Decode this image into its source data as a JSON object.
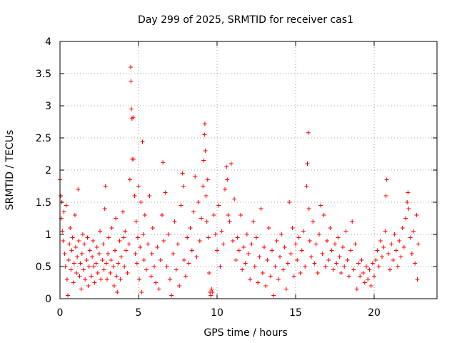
{
  "chart_data": {
    "type": "scatter",
    "title": "Day 299 of 2025, SRMTID for receiver cas1",
    "xlabel": "GPS time / hours",
    "ylabel": "SRMTID / TECUs",
    "xlim": [
      0,
      24
    ],
    "ylim": [
      0,
      4
    ],
    "xticks": [
      0,
      5,
      10,
      15,
      20
    ],
    "xtick_labels": [
      "0",
      "5",
      "10",
      "15",
      "20"
    ],
    "yticks": [
      0,
      0.5,
      1,
      1.5,
      2,
      2.5,
      3,
      3.5,
      4
    ],
    "ytick_labels": [
      "0",
      "0.5",
      "1",
      "1.5",
      "2",
      "2.5",
      "3",
      "3.5",
      "4"
    ],
    "grid": true,
    "marker": "+",
    "color": "#ff0000",
    "series": [
      {
        "name": "SRMTID",
        "points": [
          [
            0.0,
            1.85
          ],
          [
            0.05,
            1.6
          ],
          [
            0.08,
            1.25
          ],
          [
            0.12,
            1.5
          ],
          [
            0.15,
            1.05
          ],
          [
            0.2,
            0.9
          ],
          [
            0.25,
            1.35
          ],
          [
            0.3,
            0.7
          ],
          [
            0.35,
            0.5
          ],
          [
            0.4,
            1.45
          ],
          [
            0.45,
            0.3
          ],
          [
            0.5,
            0.05
          ],
          [
            0.55,
            0.6
          ],
          [
            0.6,
            0.85
          ],
          [
            0.65,
            1.1
          ],
          [
            0.7,
            0.45
          ],
          [
            0.75,
            0.75
          ],
          [
            0.8,
            0.95
          ],
          [
            0.85,
            0.25
          ],
          [
            0.9,
            0.55
          ],
          [
            0.95,
            1.3
          ],
          [
            1.0,
            0.8
          ],
          [
            1.05,
            0.4
          ],
          [
            1.1,
            0.65
          ],
          [
            1.15,
            1.7
          ],
          [
            1.2,
            0.9
          ],
          [
            1.25,
            0.35
          ],
          [
            1.3,
            0.55
          ],
          [
            1.35,
            0.15
          ],
          [
            1.4,
            0.7
          ],
          [
            1.45,
            1.0
          ],
          [
            1.5,
            0.45
          ],
          [
            1.55,
            0.85
          ],
          [
            1.6,
            0.3
          ],
          [
            1.7,
            0.6
          ],
          [
            1.75,
            0.95
          ],
          [
            1.8,
            0.2
          ],
          [
            1.85,
            0.5
          ],
          [
            1.9,
            0.75
          ],
          [
            2.0,
            0.35
          ],
          [
            2.05,
            0.65
          ],
          [
            2.1,
            0.9
          ],
          [
            2.15,
            0.5
          ],
          [
            2.2,
            0.25
          ],
          [
            2.3,
            0.55
          ],
          [
            2.35,
            0.8
          ],
          [
            2.4,
            0.4
          ],
          [
            2.5,
            0.7
          ],
          [
            2.55,
            1.05
          ],
          [
            2.6,
            0.3
          ],
          [
            2.7,
            0.6
          ],
          [
            2.75,
            0.85
          ],
          [
            2.8,
            0.45
          ],
          [
            2.85,
            1.4
          ],
          [
            2.9,
            1.75
          ],
          [
            2.95,
            0.55
          ],
          [
            3.0,
            0.3
          ],
          [
            3.05,
            0.7
          ],
          [
            3.1,
            0.95
          ],
          [
            3.2,
            0.4
          ],
          [
            3.25,
            0.6
          ],
          [
            3.3,
            1.1
          ],
          [
            3.4,
            0.5
          ],
          [
            3.45,
            0.2
          ],
          [
            3.5,
            0.75
          ],
          [
            3.55,
            1.25
          ],
          [
            3.6,
            0.35
          ],
          [
            3.65,
            0.1
          ],
          [
            3.7,
            0.55
          ],
          [
            3.8,
            0.9
          ],
          [
            3.85,
            0.3
          ],
          [
            3.9,
            0.65
          ],
          [
            4.0,
            1.35
          ],
          [
            4.05,
            0.95
          ],
          [
            4.1,
            0.5
          ],
          [
            4.15,
            1.05
          ],
          [
            4.2,
            0.75
          ],
          [
            4.3,
            0.4
          ],
          [
            4.4,
            0.85
          ],
          [
            4.45,
            1.85
          ],
          [
            4.5,
            3.6
          ],
          [
            4.52,
            3.38
          ],
          [
            4.55,
            2.95
          ],
          [
            4.58,
            2.8
          ],
          [
            4.6,
            2.17
          ],
          [
            4.65,
            2.82
          ],
          [
            4.7,
            2.17
          ],
          [
            4.75,
            1.6
          ],
          [
            4.8,
            0.7
          ],
          [
            4.85,
            1.2
          ],
          [
            4.9,
            0.55
          ],
          [
            4.95,
            0.95
          ],
          [
            5.0,
            1.75
          ],
          [
            5.05,
            0.3
          ],
          [
            5.1,
            0.8
          ],
          [
            5.15,
            1.5
          ],
          [
            5.2,
            0.1
          ],
          [
            5.25,
            2.44
          ],
          [
            5.3,
            1.0
          ],
          [
            5.35,
            0.6
          ],
          [
            5.4,
            1.3
          ],
          [
            5.5,
            0.45
          ],
          [
            5.6,
            0.85
          ],
          [
            5.7,
            1.6
          ],
          [
            5.8,
            0.35
          ],
          [
            5.85,
            0.7
          ],
          [
            5.9,
            1.1
          ],
          [
            6.0,
            0.5
          ],
          [
            6.1,
            0.25
          ],
          [
            6.2,
            0.8
          ],
          [
            6.3,
            0.15
          ],
          [
            6.4,
            0.6
          ],
          [
            6.5,
            1.3
          ],
          [
            6.55,
            2.12
          ],
          [
            6.6,
            0.9
          ],
          [
            6.7,
            1.65
          ],
          [
            6.8,
            0.5
          ],
          [
            6.9,
            1.0
          ],
          [
            7.0,
            0.3
          ],
          [
            7.1,
            0.05
          ],
          [
            7.2,
            0.7
          ],
          [
            7.3,
            1.2
          ],
          [
            7.4,
            0.45
          ],
          [
            7.5,
            0.85
          ],
          [
            7.6,
            0.2
          ],
          [
            7.7,
            1.45
          ],
          [
            7.8,
            1.95
          ],
          [
            7.85,
            1.75
          ],
          [
            7.9,
            0.6
          ],
          [
            8.0,
            0.35
          ],
          [
            8.1,
            0.95
          ],
          [
            8.2,
            0.55
          ],
          [
            8.3,
            1.1
          ],
          [
            8.4,
            0.75
          ],
          [
            8.5,
            1.35
          ],
          [
            8.6,
            1.9
          ],
          [
            8.7,
            0.65
          ],
          [
            8.8,
            1.5
          ],
          [
            8.9,
            0.9
          ],
          [
            9.0,
            1.25
          ],
          [
            9.1,
            1.75
          ],
          [
            9.15,
            2.15
          ],
          [
            9.2,
            2.55
          ],
          [
            9.22,
            2.72
          ],
          [
            9.25,
            2.3
          ],
          [
            9.3,
            1.6
          ],
          [
            9.35,
            1.2
          ],
          [
            9.4,
            1.85
          ],
          [
            9.45,
            0.95
          ],
          [
            9.5,
            0.4
          ],
          [
            9.55,
            0.1
          ],
          [
            9.6,
            0.05
          ],
          [
            9.65,
            0.15
          ],
          [
            9.7,
            0.1
          ],
          [
            9.8,
            1.3
          ],
          [
            9.9,
            1.0
          ],
          [
            10.0,
            0.75
          ],
          [
            10.1,
            1.45
          ],
          [
            10.2,
            0.5
          ],
          [
            10.3,
            1.05
          ],
          [
            10.4,
            0.85
          ],
          [
            10.5,
            1.7
          ],
          [
            10.6,
            2.05
          ],
          [
            10.65,
            1.85
          ],
          [
            10.7,
            1.3
          ],
          [
            10.8,
            1.2
          ],
          [
            10.9,
            2.1
          ],
          [
            11.0,
            0.9
          ],
          [
            11.1,
            1.55
          ],
          [
            11.2,
            0.6
          ],
          [
            11.3,
            0.95
          ],
          [
            11.4,
            0.75
          ],
          [
            11.5,
            1.3
          ],
          [
            11.6,
            0.45
          ],
          [
            11.7,
            0.8
          ],
          [
            11.8,
            0.55
          ],
          [
            11.9,
            1.0
          ],
          [
            12.0,
            0.7
          ],
          [
            12.1,
            0.3
          ],
          [
            12.2,
            0.85
          ],
          [
            12.3,
            1.2
          ],
          [
            12.4,
            0.5
          ],
          [
            12.5,
            0.95
          ],
          [
            12.6,
            0.25
          ],
          [
            12.7,
            0.65
          ],
          [
            12.8,
            1.4
          ],
          [
            12.9,
            0.4
          ],
          [
            13.0,
            0.8
          ],
          [
            13.1,
            0.2
          ],
          [
            13.2,
            0.6
          ],
          [
            13.3,
            1.1
          ],
          [
            13.4,
            0.35
          ],
          [
            13.5,
            0.75
          ],
          [
            13.6,
            0.05
          ],
          [
            13.7,
            0.5
          ],
          [
            13.8,
            0.9
          ],
          [
            13.9,
            0.3
          ],
          [
            14.0,
            0.65
          ],
          [
            14.1,
            1.0
          ],
          [
            14.2,
            0.45
          ],
          [
            14.3,
            0.8
          ],
          [
            14.4,
            0.15
          ],
          [
            14.5,
            0.55
          ],
          [
            14.6,
            1.5
          ],
          [
            14.7,
            0.7
          ],
          [
            14.8,
            1.1
          ],
          [
            14.9,
            0.35
          ],
          [
            15.0,
            0.85
          ],
          [
            15.1,
            0.6
          ],
          [
            15.2,
            0.95
          ],
          [
            15.3,
            0.4
          ],
          [
            15.4,
            0.75
          ],
          [
            15.5,
            1.05
          ],
          [
            15.6,
            0.5
          ],
          [
            15.7,
            1.75
          ],
          [
            15.75,
            2.1
          ],
          [
            15.8,
            2.58
          ],
          [
            15.85,
            1.4
          ],
          [
            15.9,
            0.9
          ],
          [
            16.0,
            0.65
          ],
          [
            16.1,
            1.2
          ],
          [
            16.2,
            0.55
          ],
          [
            16.3,
            0.85
          ],
          [
            16.4,
            0.4
          ],
          [
            16.5,
            1.0
          ],
          [
            16.6,
            1.45
          ],
          [
            16.7,
            0.7
          ],
          [
            16.8,
            1.3
          ],
          [
            16.9,
            0.5
          ],
          [
            17.0,
            0.9
          ],
          [
            17.1,
            0.6
          ],
          [
            17.2,
            1.1
          ],
          [
            17.3,
            0.75
          ],
          [
            17.4,
            0.45
          ],
          [
            17.5,
            0.85
          ],
          [
            17.6,
            0.55
          ],
          [
            17.7,
            0.95
          ],
          [
            17.8,
            0.65
          ],
          [
            17.9,
            0.4
          ],
          [
            18.0,
            0.8
          ],
          [
            18.1,
            0.5
          ],
          [
            18.2,
            1.05
          ],
          [
            18.3,
            0.6
          ],
          [
            18.4,
            0.35
          ],
          [
            18.5,
            0.75
          ],
          [
            18.6,
            1.2
          ],
          [
            18.7,
            0.45
          ],
          [
            18.8,
            0.85
          ],
          [
            18.9,
            0.15
          ],
          [
            19.0,
            0.55
          ],
          [
            19.1,
            0.35
          ],
          [
            19.2,
            0.6
          ],
          [
            19.3,
            0.4
          ],
          [
            19.4,
            0.25
          ],
          [
            19.5,
            0.5
          ],
          [
            19.6,
            0.3
          ],
          [
            19.7,
            0.45
          ],
          [
            19.8,
            0.2
          ],
          [
            19.9,
            0.55
          ],
          [
            20.0,
            0.35
          ],
          [
            20.1,
            0.6
          ],
          [
            20.2,
            0.75
          ],
          [
            20.3,
            0.5
          ],
          [
            20.4,
            0.9
          ],
          [
            20.5,
            0.65
          ],
          [
            20.6,
            0.8
          ],
          [
            20.7,
            1.05
          ],
          [
            20.75,
            1.6
          ],
          [
            20.8,
            1.85
          ],
          [
            20.9,
            0.7
          ],
          [
            21.0,
            0.45
          ],
          [
            21.1,
            0.85
          ],
          [
            21.2,
            0.6
          ],
          [
            21.3,
            1.0
          ],
          [
            21.4,
            0.75
          ],
          [
            21.5,
            0.5
          ],
          [
            21.6,
            0.9
          ],
          [
            21.7,
            0.65
          ],
          [
            21.8,
            1.1
          ],
          [
            21.9,
            0.8
          ],
          [
            22.0,
            1.25
          ],
          [
            22.1,
            1.5
          ],
          [
            22.15,
            1.65
          ],
          [
            22.2,
            1.4
          ],
          [
            22.3,
            0.95
          ],
          [
            22.4,
            0.7
          ],
          [
            22.5,
            1.05
          ],
          [
            22.6,
            0.55
          ],
          [
            22.7,
            1.3
          ],
          [
            22.75,
            0.3
          ],
          [
            22.8,
            0.85
          ]
        ]
      }
    ]
  }
}
